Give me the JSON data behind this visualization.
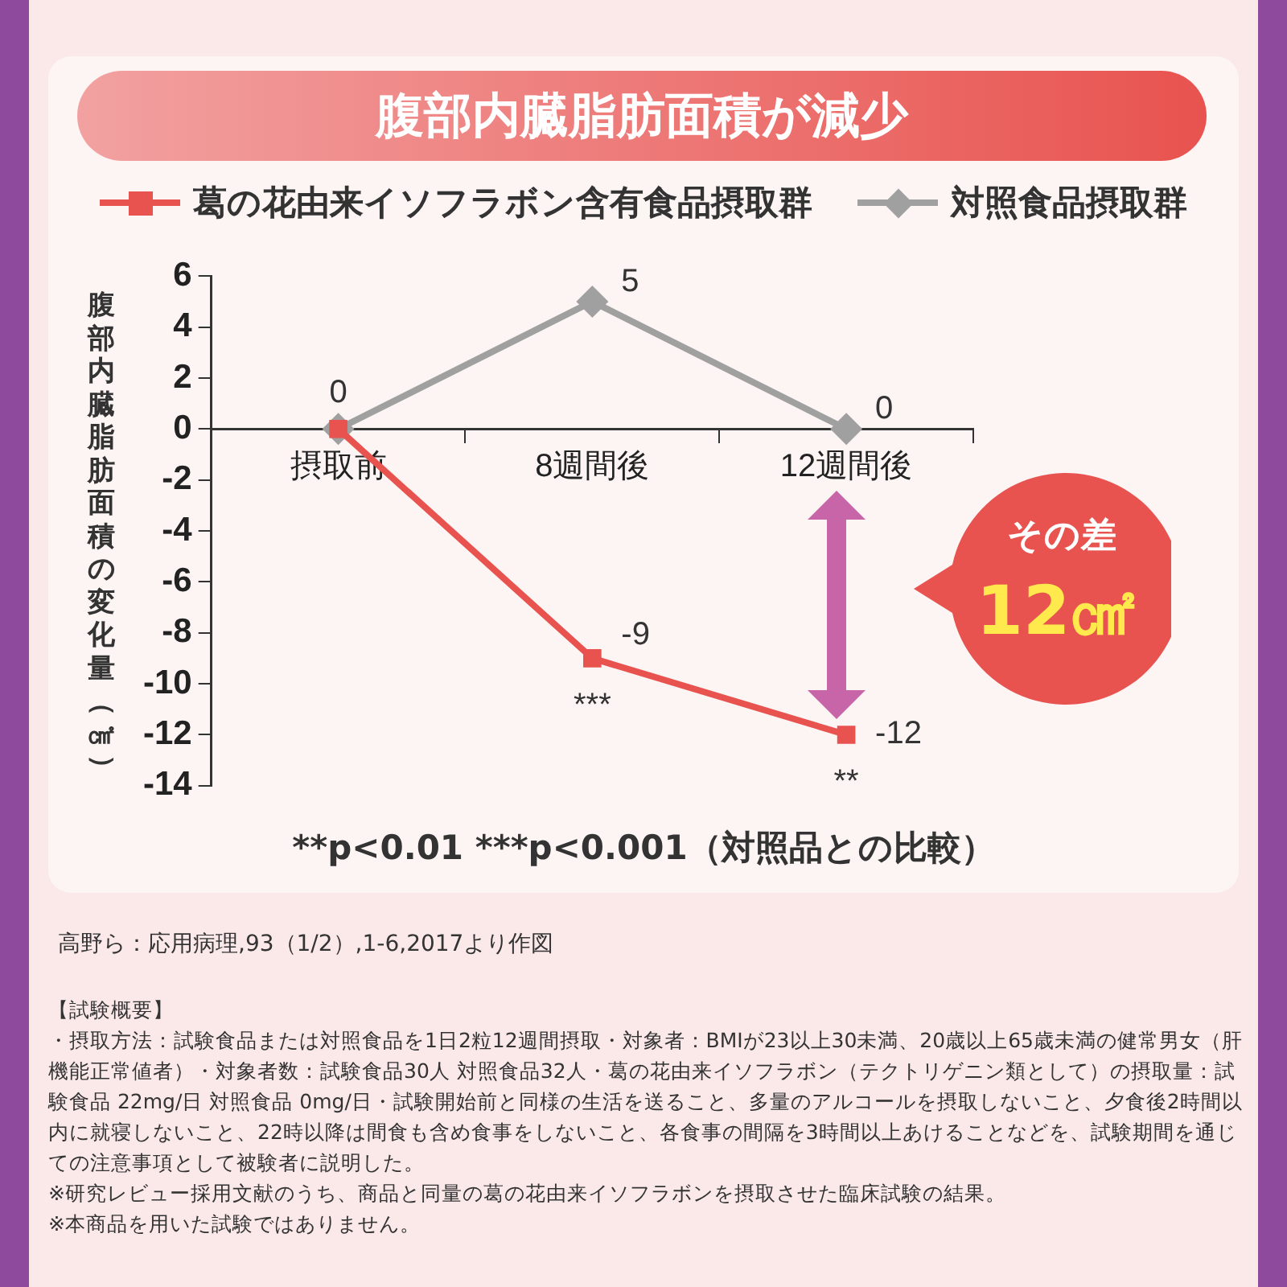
{
  "chart_data": {
    "type": "line",
    "title": "腹部内臓脂肪面積が減少",
    "ylabel": "腹部内臓脂肪面積の変化量（㎠）",
    "categories": [
      "摂取前",
      "8週間後",
      "12週間後"
    ],
    "series": [
      {
        "name": "葛の花由来イソフラボン含有食品摂取群",
        "color": "#e8534f",
        "marker": "square",
        "values": [
          0,
          -9,
          -12
        ],
        "value_labels": [
          "0",
          "-9",
          "-12"
        ]
      },
      {
        "name": "対照食品摂取群",
        "color": "#a0a0a0",
        "marker": "diamond",
        "values": [
          0,
          5,
          0
        ],
        "value_labels": [
          null,
          "5",
          "0"
        ]
      }
    ],
    "ylim": [
      -14,
      6
    ],
    "yticks": [
      -14,
      -12,
      -10,
      -8,
      -6,
      -4,
      -2,
      0,
      2,
      4,
      6
    ],
    "grid": false,
    "legend": "top",
    "annotations": [
      {
        "text": "***",
        "x": "8週間後",
        "y": -9
      },
      {
        "text": "**",
        "x": "12週間後",
        "y": -12
      },
      "**p<0.01 ***p<0.001（対照品との比較）",
      "その差",
      "12㎠",
      "高野ら：応用病理,93（1/2）,1-6,2017より作図",
      "【試験概要】",
      "・摂取方法：試験食品または対照食品を1日2粒12週間摂取・対象者：BMIが23以上30未満、20歳以上65歳未満の健常男女（肝機能正常値者）・対象者数：試験食品30人 対照食品32人・葛の花由来イソフラボン（テクトリゲニン類として）の摂取量：試験食品 22mg/日 対照食品 0mg/日・試験開始前と同様の生活を送ること、多量のアルコールを摂取しないこと、夕食後2時間以内に就寝しないこと、22時以降は間食も含め食事をしないこと、各食事の間隔を3時間以上あけることなどを、試験期間を通じての注意事項として被験者に説明した。",
      "※研究レビュー採用文献のうち、商品と同量の葛の花由来イソフラボンを摂取させた臨床試験の結果。",
      "※本商品を用いた試験ではありません。"
    ]
  }
}
